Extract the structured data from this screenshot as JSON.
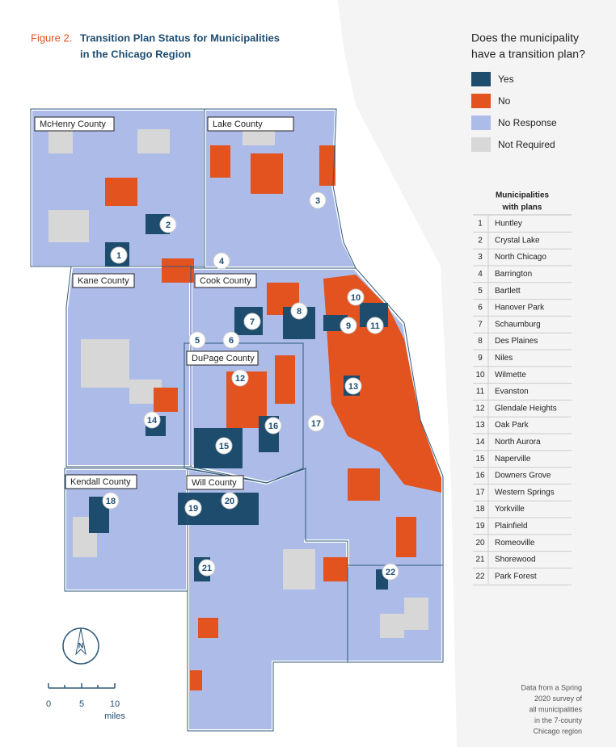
{
  "figure": {
    "label": "Figure 2.",
    "title_lines": [
      "Transition Plan Status for Municipalities",
      "in the Chicago Region"
    ]
  },
  "legend": {
    "question": [
      "Does the municipality",
      "have a transition plan?"
    ],
    "items": [
      {
        "label": "Yes",
        "color": "#1d4c6d"
      },
      {
        "label": "No",
        "color": "#e2531f"
      },
      {
        "label": "No Response",
        "color": "#adbbe8"
      },
      {
        "label": "Not Required",
        "color": "#d7d7d7"
      }
    ]
  },
  "counties": [
    "McHenry County",
    "Lake County",
    "Kane County",
    "Cook County",
    "DuPage County",
    "Kendall County",
    "Will County"
  ],
  "table": {
    "header": [
      "Municipalities",
      "with plans"
    ],
    "rows": [
      [
        "1",
        "Huntley"
      ],
      [
        "2",
        "Crystal Lake"
      ],
      [
        "3",
        "North Chicago"
      ],
      [
        "4",
        "Barrington"
      ],
      [
        "5",
        "Bartlett"
      ],
      [
        "6",
        "Hanover Park"
      ],
      [
        "7",
        "Schaumburg"
      ],
      [
        "8",
        "Des Plaines"
      ],
      [
        "9",
        "Niles"
      ],
      [
        "10",
        "Wilmette"
      ],
      [
        "11",
        "Evanston"
      ],
      [
        "12",
        "Glendale Heights"
      ],
      [
        "13",
        "Oak Park"
      ],
      [
        "14",
        "North Aurora"
      ],
      [
        "15",
        "Naperville"
      ],
      [
        "16",
        "Downers Grove"
      ],
      [
        "17",
        "Western Springs"
      ],
      [
        "18",
        "Yorkville"
      ],
      [
        "19",
        "Plainfield"
      ],
      [
        "20",
        "Romeoville"
      ],
      [
        "21",
        "Shorewood"
      ],
      [
        "22",
        "Park Forest"
      ]
    ]
  },
  "scale": {
    "ticks": [
      "0",
      "5",
      "10"
    ],
    "unit": "miles"
  },
  "compass": "N",
  "note": [
    "Data from a Spring",
    "2020 survey of",
    "all municipalities",
    "in the 7-county",
    "Chicago region"
  ]
}
